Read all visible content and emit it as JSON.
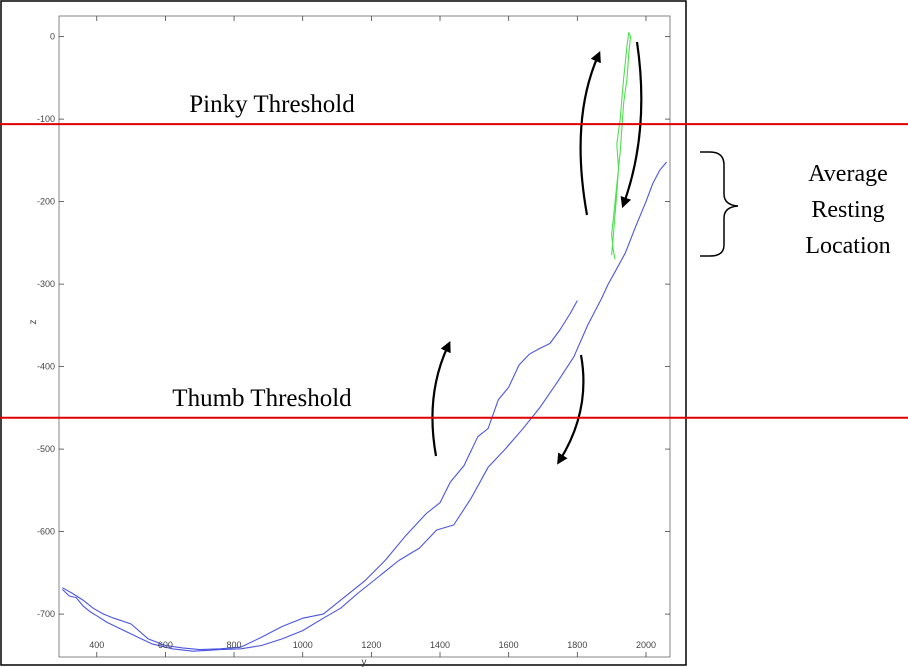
{
  "chart_data": {
    "type": "line",
    "xlabel": "y",
    "ylabel": "z",
    "xlim": [
      290,
      2070
    ],
    "ylim": [
      -752,
      25
    ],
    "xticks": [
      400,
      600,
      800,
      1000,
      1200,
      1400,
      1600,
      1800,
      2000
    ],
    "yticks": [
      0,
      -100,
      -200,
      -300,
      -400,
      -500,
      -600,
      -700
    ],
    "xtick_labels": [
      "400",
      "600",
      "800",
      "1000",
      "1200",
      "1400",
      "1600",
      "1800",
      "2000"
    ],
    "ytick_labels": [
      "0",
      "-100",
      "-200",
      "-300",
      "-400",
      "-500",
      "-600",
      "-700"
    ],
    "grid": false,
    "thresholds": [
      {
        "label": "Pinky Threshold",
        "value": -106,
        "color": "#e00000"
      },
      {
        "label": "Thumb Threshold",
        "value": -462,
        "color": "#e00000"
      }
    ],
    "annotation": {
      "text": [
        "Average",
        "Resting",
        "Location"
      ],
      "range": [
        -145,
        -280
      ]
    },
    "series": [
      {
        "color": "#4b55e0",
        "x": [
          300,
          320,
          340,
          360,
          380,
          400,
          430,
          470,
          520,
          560,
          620,
          680,
          720,
          760,
          820,
          880,
          940,
          1000,
          1060,
          1110,
          1160,
          1220,
          1280,
          1340,
          1390,
          1440,
          1490,
          1540,
          1590,
          1640,
          1690,
          1740,
          1790,
          1830,
          1870,
          1890,
          1910,
          1940,
          1970,
          2000,
          2020,
          2040,
          2060
        ],
        "y": [
          -670,
          -678,
          -680,
          -690,
          -697,
          -702,
          -710,
          -718,
          -728,
          -736,
          -742,
          -745,
          -744,
          -743,
          -742,
          -738,
          -730,
          -720,
          -705,
          -693,
          -675,
          -655,
          -635,
          -620,
          -598,
          -592,
          -560,
          -522,
          -500,
          -476,
          -450,
          -420,
          -388,
          -350,
          -318,
          -300,
          -285,
          -262,
          -230,
          -200,
          -178,
          -162,
          -152
        ]
      },
      {
        "color": "#4b55e0",
        "x": [
          300,
          330,
          360,
          390,
          420,
          450,
          500,
          550,
          600,
          650,
          700,
          760,
          820,
          880,
          940,
          1000,
          1060,
          1120,
          1180,
          1240,
          1300,
          1360,
          1400,
          1430,
          1470,
          1510,
          1540,
          1570,
          1600,
          1630,
          1660,
          1690,
          1720,
          1750,
          1780,
          1800
        ],
        "y": [
          -668,
          -675,
          -683,
          -693,
          -700,
          -705,
          -712,
          -730,
          -738,
          -741,
          -743,
          -742,
          -740,
          -728,
          -715,
          -705,
          -700,
          -680,
          -660,
          -635,
          -605,
          -578,
          -565,
          -540,
          -520,
          -485,
          -475,
          -440,
          -425,
          -398,
          -385,
          -378,
          -372,
          -355,
          -335,
          -320
        ]
      },
      {
        "color": "#4ee04e",
        "x": [
          1900,
          1905,
          1910,
          1915,
          1920,
          1915,
          1925,
          1930,
          1935,
          1940,
          1945,
          1950,
          1955,
          1950,
          1945,
          1935,
          1930,
          1925,
          1920,
          1915,
          1910,
          1905,
          1900,
          1905,
          1910
        ],
        "y": [
          -265,
          -240,
          -215,
          -190,
          -160,
          -130,
          -100,
          -75,
          -50,
          -30,
          -10,
          5,
          0,
          -20,
          -50,
          -80,
          -110,
          -140,
          -160,
          -180,
          -200,
          -220,
          -240,
          -260,
          -270
        ]
      }
    ]
  }
}
